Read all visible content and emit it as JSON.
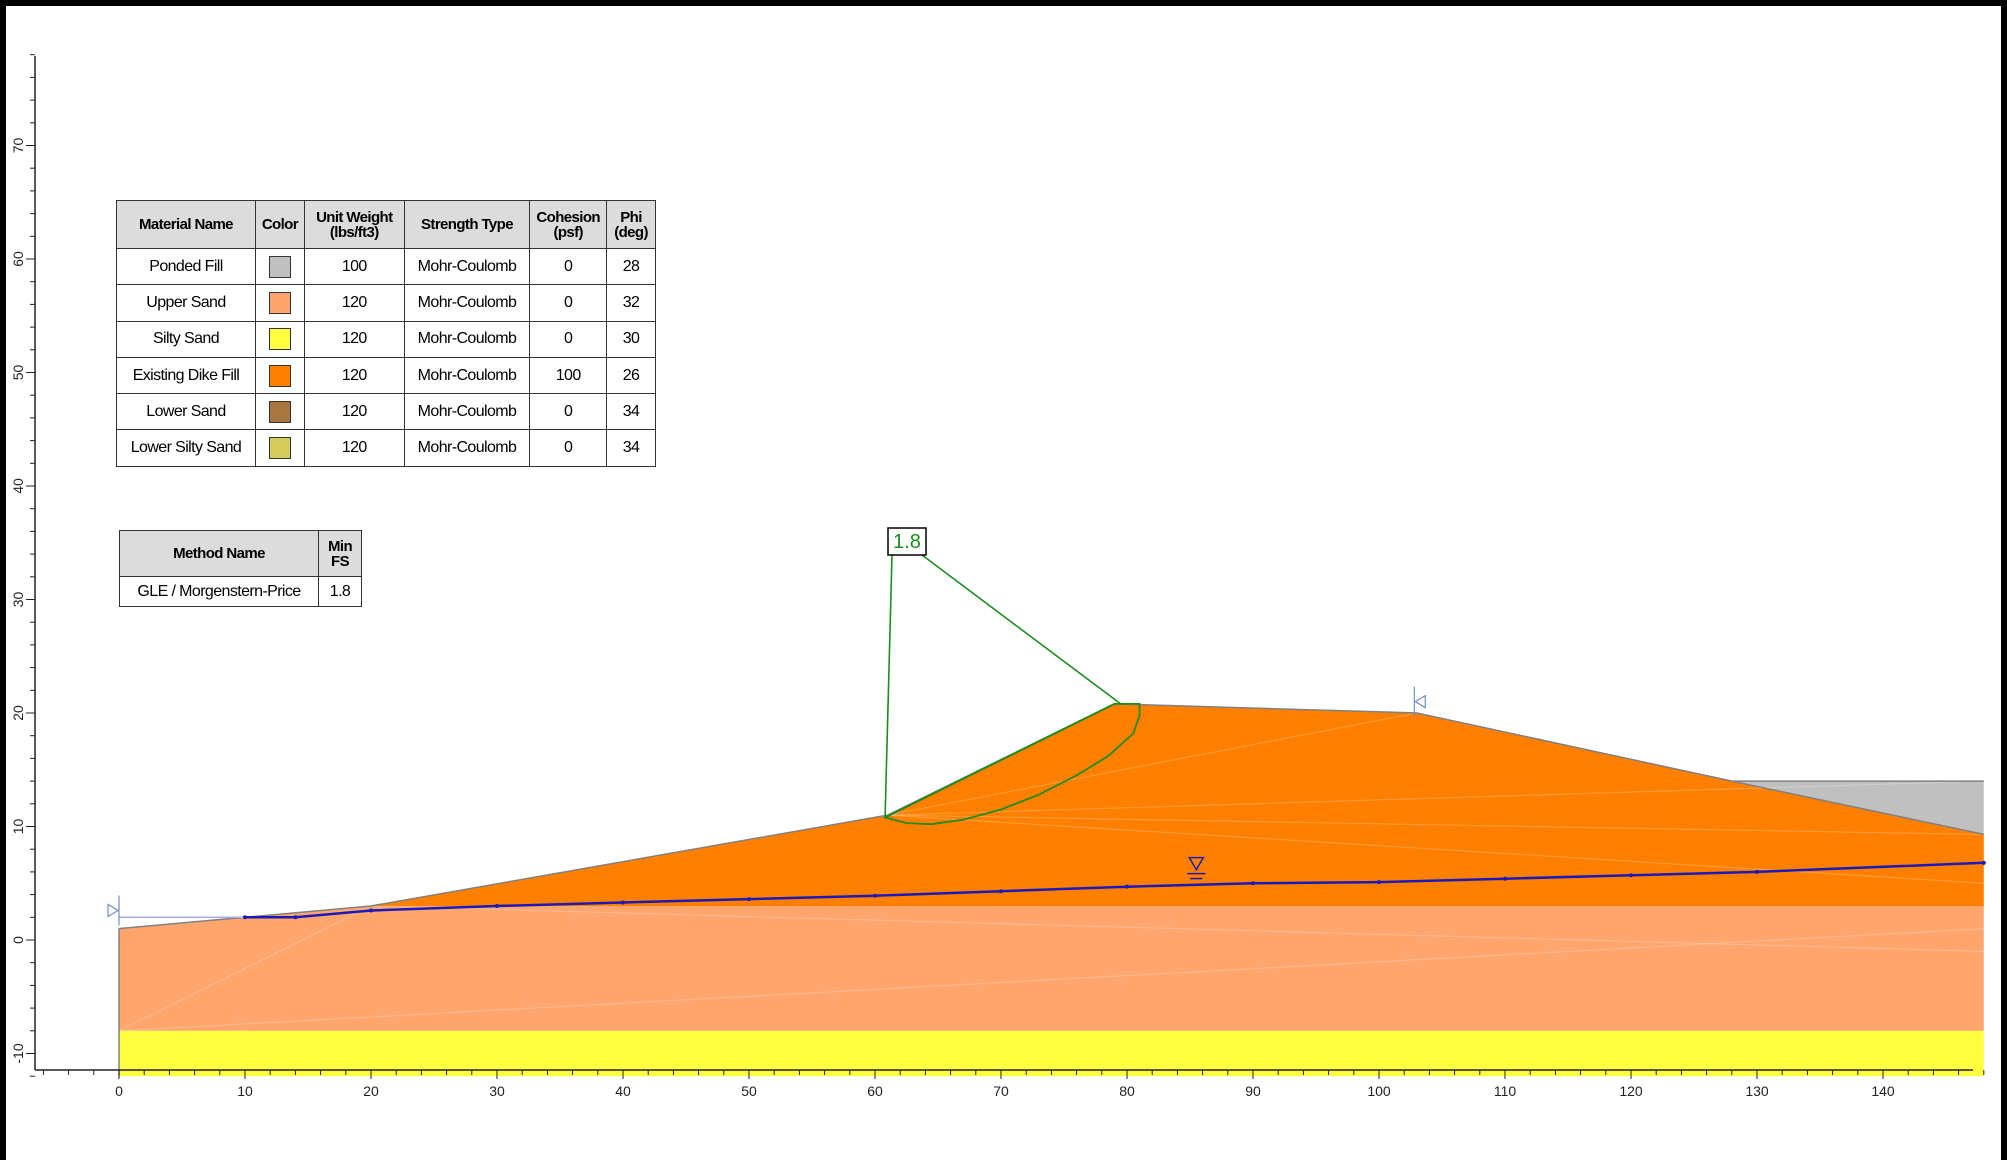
{
  "materials_table": {
    "headers": {
      "name": "Material Name",
      "color": "Color",
      "unit_weight_1": "Unit Weight",
      "unit_weight_2": "(lbs/ft3)",
      "strength_type": "Strength Type",
      "cohesion_1": "Cohesion",
      "cohesion_2": "(psf)",
      "phi_1": "Phi",
      "phi_2": "(deg)"
    },
    "rows": [
      {
        "name": "Ponded Fill",
        "color": "#c0c0c0",
        "unit_weight": "100",
        "strength_type": "Mohr-Coulomb",
        "cohesion": "0",
        "phi": "28"
      },
      {
        "name": "Upper Sand",
        "color": "#ffa56e",
        "unit_weight": "120",
        "strength_type": "Mohr-Coulomb",
        "cohesion": "0",
        "phi": "32"
      },
      {
        "name": "Silty Sand",
        "color": "#ffff40",
        "unit_weight": "120",
        "strength_type": "Mohr-Coulomb",
        "cohesion": "0",
        "phi": "30"
      },
      {
        "name": "Existing Dike Fill",
        "color": "#ff8000",
        "unit_weight": "120",
        "strength_type": "Mohr-Coulomb",
        "cohesion": "100",
        "phi": "26"
      },
      {
        "name": "Lower Sand",
        "color": "#a87840",
        "unit_weight": "120",
        "strength_type": "Mohr-Coulomb",
        "cohesion": "0",
        "phi": "34"
      },
      {
        "name": "Lower Silty Sand",
        "color": "#d4cc5a",
        "unit_weight": "120",
        "strength_type": "Mohr-Coulomb",
        "cohesion": "0",
        "phi": "34"
      }
    ]
  },
  "methods_table": {
    "headers": {
      "method": "Method Name",
      "min_fs_1": "Min",
      "min_fs_2": "FS"
    },
    "rows": [
      {
        "method": "GLE / Morgenstern-Price",
        "min_fs": "1.8"
      }
    ]
  },
  "slip_surface": {
    "fs_label": "1.8",
    "color": "#1e8c1e",
    "points": [
      [
        60.8,
        10.8
      ],
      [
        62.5,
        10.3
      ],
      [
        64.5,
        10.2
      ],
      [
        67,
        10.6
      ],
      [
        70,
        11.5
      ],
      [
        73,
        12.8
      ],
      [
        76,
        14.5
      ],
      [
        78.5,
        16.2
      ],
      [
        80.5,
        18.2
      ],
      [
        81,
        19.8
      ],
      [
        81,
        20.8
      ],
      [
        80.2,
        20.8
      ],
      [
        79,
        20.8
      ]
    ]
  },
  "axes": {
    "x_ticks": [
      "0",
      "10",
      "20",
      "30",
      "40",
      "50",
      "60",
      "70",
      "80",
      "90",
      "100",
      "110",
      "120",
      "130",
      "140"
    ],
    "y_ticks": [
      "-10",
      "0",
      "10",
      "20",
      "30",
      "40",
      "50",
      "60",
      "70"
    ]
  },
  "geometry": {
    "units": "ft",
    "colors": {
      "dike_fill": "#ff8000",
      "upper_sand": "#ffa56e",
      "silty_sand": "#ffff40",
      "ponded_fill": "#c0c0c0",
      "water_table": "#1a1ab8",
      "slip_surface": "#1e8c1e",
      "boundary": "#808080"
    },
    "silty_sand": [
      [
        0,
        -8
      ],
      [
        148,
        -8
      ],
      [
        148,
        -12
      ],
      [
        0,
        -12
      ]
    ],
    "upper_sand": [
      [
        0,
        1
      ],
      [
        10,
        2
      ],
      [
        20,
        3
      ],
      [
        148,
        3
      ],
      [
        148,
        -8
      ],
      [
        0,
        -8
      ]
    ],
    "dike_fill": [
      [
        20,
        3
      ],
      [
        61,
        11
      ],
      [
        79,
        20.8
      ],
      [
        103,
        20
      ],
      [
        148,
        9.3
      ],
      [
        148,
        3
      ]
    ],
    "ponded_fill": [
      [
        128,
        14
      ],
      [
        148,
        14
      ],
      [
        148,
        9.3
      ]
    ],
    "water_table": [
      [
        10,
        2
      ],
      [
        14,
        2
      ],
      [
        20,
        2.6
      ],
      [
        30,
        3
      ],
      [
        40,
        3.3
      ],
      [
        50,
        3.6
      ],
      [
        60,
        3.9
      ],
      [
        70,
        4.3
      ],
      [
        80,
        4.7
      ],
      [
        90,
        5.0
      ],
      [
        100,
        5.1
      ],
      [
        110,
        5.4
      ],
      [
        120,
        5.7
      ],
      [
        130,
        6.0
      ],
      [
        148,
        6.8
      ]
    ]
  }
}
